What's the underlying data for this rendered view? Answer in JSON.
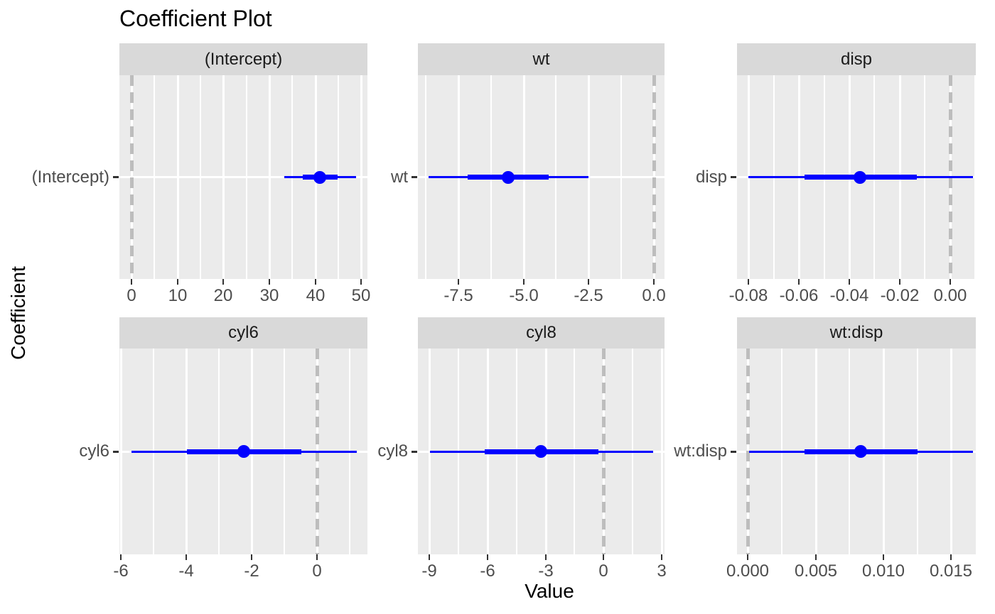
{
  "title": "Coefficient Plot",
  "axes": {
    "x_label": "Value",
    "y_label": "Coefficient"
  },
  "colors": {
    "background": "#FFFFFF",
    "panel_bg": "#EBEBEB",
    "strip_bg": "#D9D9D9",
    "strip_text": "#1A1A1A",
    "grid": "#FFFFFF",
    "interval_blue": "#0000FF",
    "zero_line_grey": "#BDBDBD",
    "axis_text": "#4D4D4D",
    "tick_mark": "#333333",
    "title_text": "#000000"
  },
  "chart_data": {
    "type": "pointrange",
    "title": "Coefficient Plot",
    "xlabel": "Value",
    "ylabel": "Coefficient",
    "grid": "on",
    "legend": "none",
    "facet_layout": "2 rows x 3 cols, free scales",
    "zero_reference_line": 0,
    "facets": [
      {
        "label": "(Intercept)",
        "estimate": 41.0,
        "inner_interval": [
          37.2,
          44.9
        ],
        "outer_interval": [
          33.2,
          48.8
        ],
        "xlim": [
          -2.63,
          51.35
        ],
        "ticks": [
          0,
          10,
          20,
          30,
          40,
          50
        ],
        "tick_labels": [
          "0",
          "10",
          "20",
          "30",
          "40",
          "50"
        ],
        "minor_ticks": [
          5,
          15,
          25,
          35,
          45
        ]
      },
      {
        "label": "wt",
        "estimate": -5.59,
        "inner_interval": [
          -7.13,
          -4.04
        ],
        "outer_interval": [
          -8.63,
          -2.52
        ],
        "xlim": [
          -9.05,
          0.41
        ],
        "ticks": [
          -7.5,
          -5.0,
          -2.5,
          0.0
        ],
        "tick_labels": [
          "-7.5",
          "-5.0",
          "-2.5",
          "0.0"
        ],
        "minor_ticks": [
          -8.75,
          -6.25,
          -3.75,
          -1.25
        ]
      },
      {
        "label": "disp",
        "estimate": -0.0358,
        "inner_interval": [
          -0.0579,
          -0.0132
        ],
        "outer_interval": [
          -0.0801,
          0.0092
        ],
        "xlim": [
          -0.0846,
          0.01025
        ],
        "ticks": [
          -0.08,
          -0.06,
          -0.04,
          -0.02,
          0.0
        ],
        "tick_labels": [
          "-0.08",
          "-0.06",
          "-0.04",
          "-0.02",
          "0.00"
        ],
        "minor_ticks": [
          -0.07,
          -0.05,
          -0.03,
          -0.01,
          0.01
        ]
      },
      {
        "label": "cyl6",
        "estimate": -2.25,
        "inner_interval": [
          -3.97,
          -0.49
        ],
        "outer_interval": [
          -5.67,
          1.21
        ],
        "xlim": [
          -6.04,
          1.54
        ],
        "ticks": [
          -6,
          -4,
          -2,
          0
        ],
        "tick_labels": [
          "-6",
          "-4",
          "-2",
          "0"
        ],
        "minor_ticks": [
          -5,
          -3,
          -1,
          1
        ]
      },
      {
        "label": "cyl8",
        "estimate": -3.23,
        "inner_interval": [
          -6.14,
          -0.28
        ],
        "outer_interval": [
          -8.95,
          2.56
        ],
        "xlim": [
          -9.58,
          3.14
        ],
        "ticks": [
          -9,
          -6,
          -3,
          0,
          3
        ],
        "tick_labels": [
          "-9",
          "-6",
          "-3",
          "0",
          "3"
        ],
        "minor_ticks": [
          -7.5,
          -4.5,
          -1.5,
          1.5
        ]
      },
      {
        "label": "wt:disp",
        "estimate": 0.0083,
        "inner_interval": [
          0.0042,
          0.0125
        ],
        "outer_interval": [
          0.0001,
          0.0166
        ],
        "xlim": [
          -0.0008,
          0.01682
        ],
        "ticks": [
          0.0,
          0.005,
          0.01,
          0.015
        ],
        "tick_labels": [
          "0.000",
          "0.005",
          "0.010",
          "0.015"
        ],
        "minor_ticks": [
          0.0025,
          0.0075,
          0.0125
        ]
      }
    ]
  }
}
